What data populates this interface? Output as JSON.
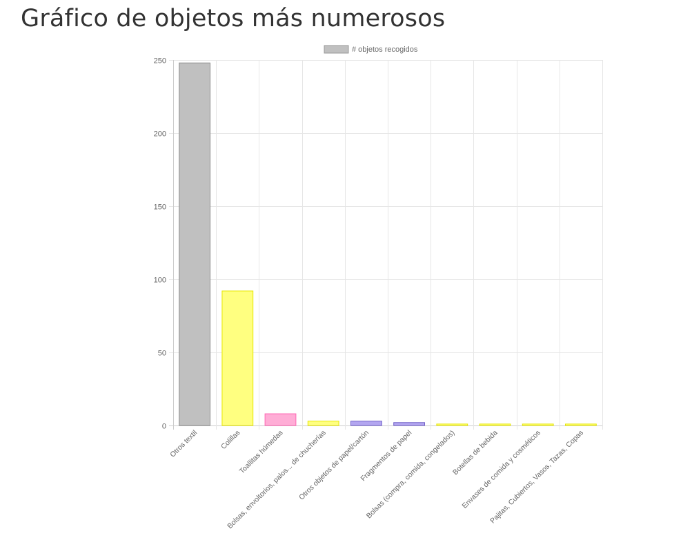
{
  "page_title": "Gráfico de objetos más numerosos",
  "chart_data": {
    "type": "bar",
    "legend": {
      "label": "# objetos recogidos",
      "position": "top",
      "swatch_fill": "#c0c0c0",
      "swatch_stroke": "#999999"
    },
    "categories": [
      "Otros textil",
      "Colillas",
      "Toallitas húmedas",
      "Bolsas, envoltorios, palos... de chucherías",
      "Otros objetos de papel/cartón",
      "Fragmentos de papel",
      "Bolsas (compra, comida, congelados)",
      "Botellas de bebida",
      "Envases de comida y cosméticos",
      "Pajitas, Cubiertos, Vasos, Tazas, Copas"
    ],
    "series": [
      {
        "name": "# objetos recogidos",
        "values": [
          248,
          92,
          8,
          3,
          3,
          2,
          1,
          1,
          1,
          1
        ]
      }
    ],
    "colors": [
      {
        "fill": "#c0c0c0",
        "stroke": "#8c8c8c"
      },
      {
        "fill": "#ffff80",
        "stroke": "#e6e600"
      },
      {
        "fill": "#ffadd6",
        "stroke": "#ff66b3"
      },
      {
        "fill": "#ffff80",
        "stroke": "#e6e600"
      },
      {
        "fill": "#b3a6f0",
        "stroke": "#7060c8"
      },
      {
        "fill": "#b3a6f0",
        "stroke": "#7060c8"
      },
      {
        "fill": "#ffff80",
        "stroke": "#e6e600"
      },
      {
        "fill": "#ffff80",
        "stroke": "#e6e600"
      },
      {
        "fill": "#ffff80",
        "stroke": "#e6e600"
      },
      {
        "fill": "#ffff80",
        "stroke": "#e6e600"
      }
    ],
    "ylim": [
      0,
      250
    ],
    "y_ticks": [
      0,
      50,
      100,
      150,
      200,
      250
    ],
    "xlabel": "",
    "ylabel": "",
    "grid": true,
    "gridline_color": "#e6e6e6",
    "axis_color": "#cccccc"
  }
}
